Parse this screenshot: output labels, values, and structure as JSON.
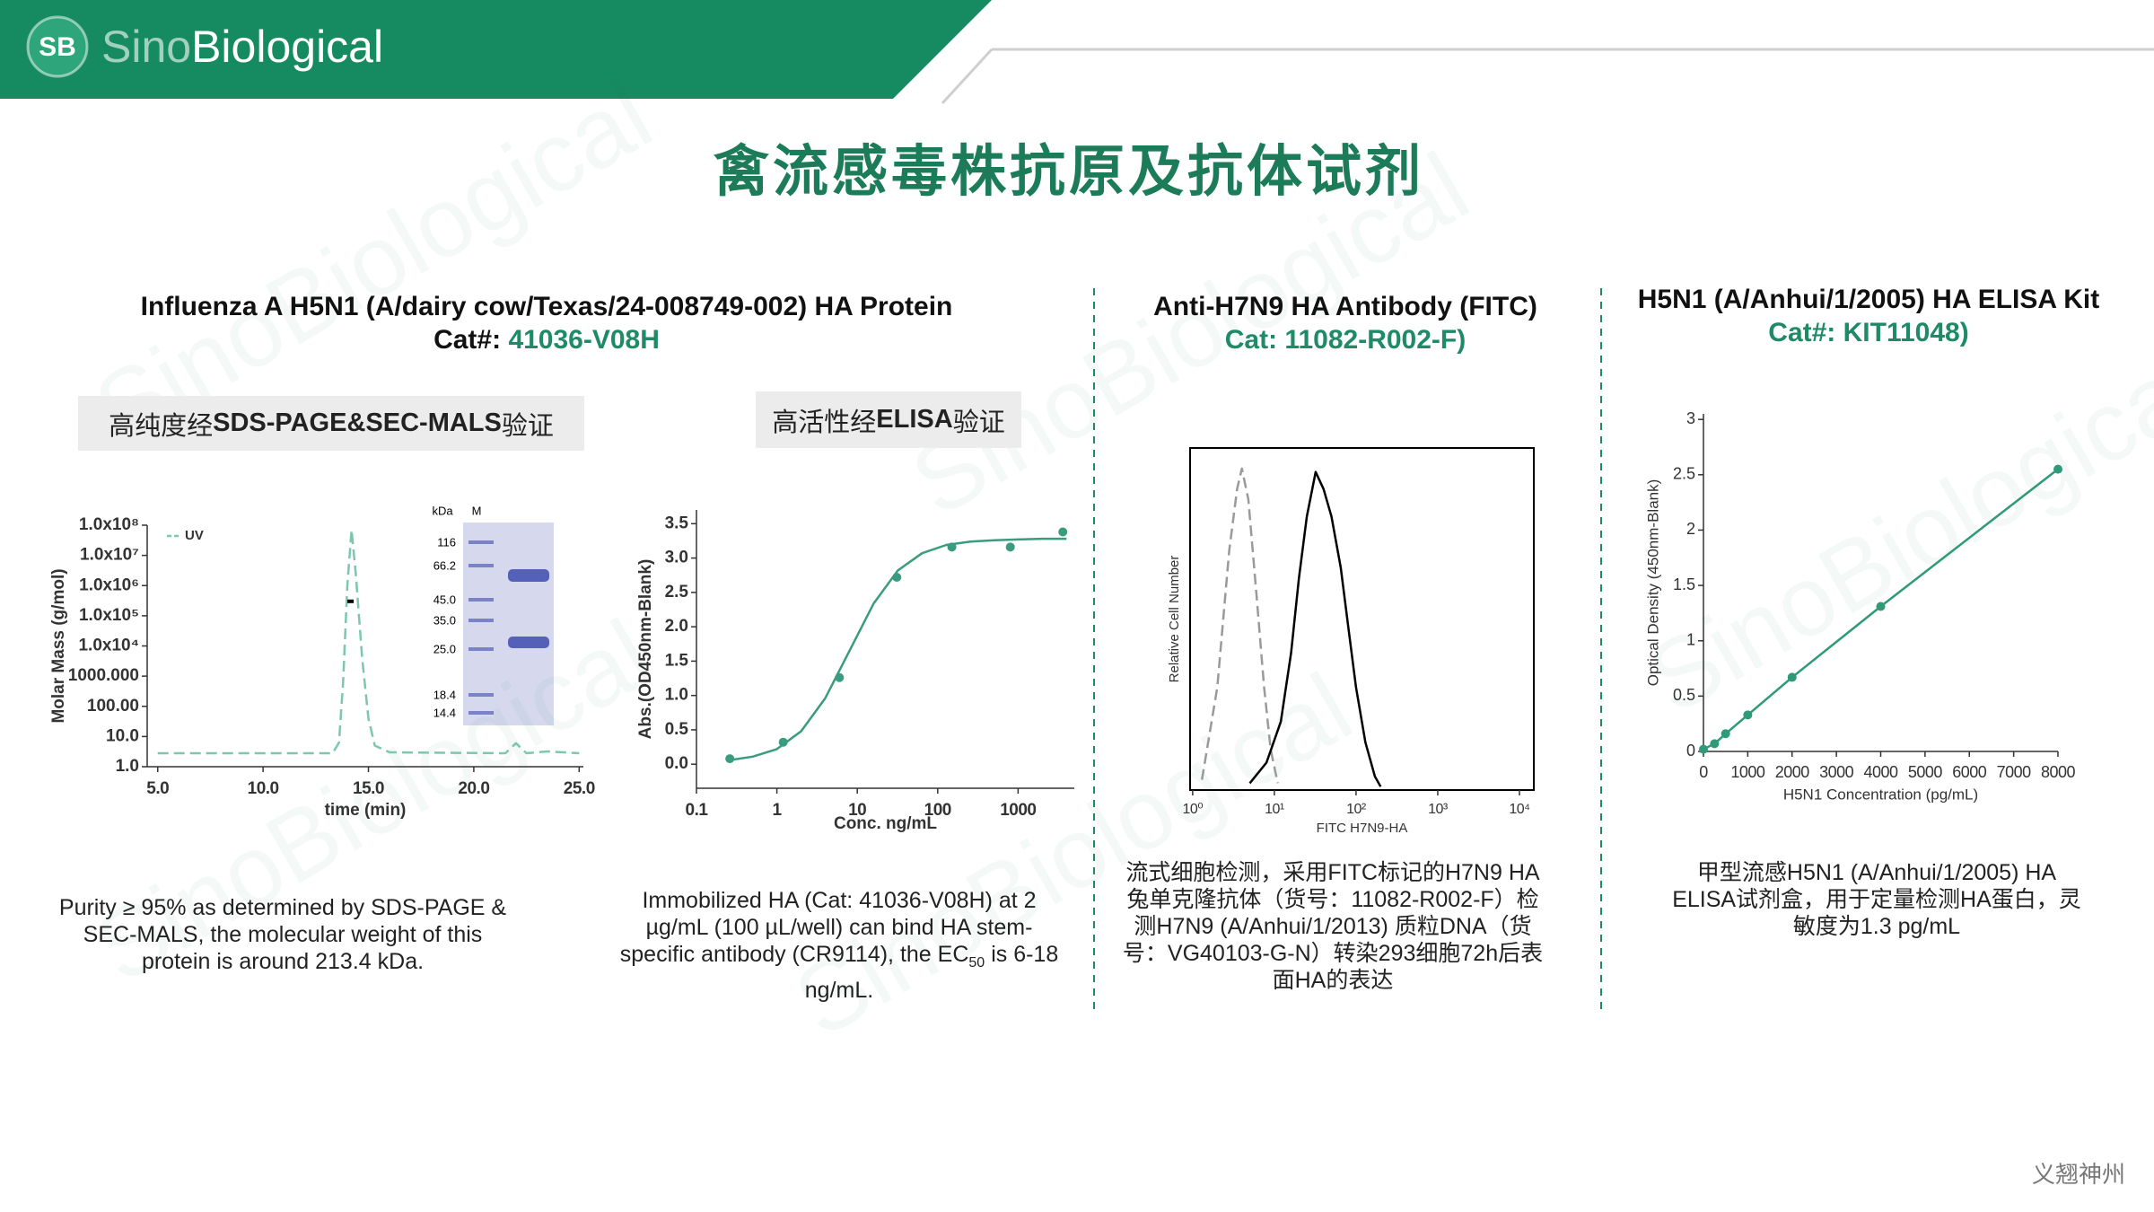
{
  "header": {
    "logo_mark": "SB",
    "logo_name_1": "Sino",
    "logo_name_2": "Biological"
  },
  "watermark": "SinoBiological",
  "title": "禽流感毒株抗原及抗体试剂",
  "panels": [
    {
      "title": "Influenza A H5N1 (A/dairy cow/Texas/24-008749-002) HA Protein",
      "cat_label": "Cat#:",
      "cat_number": "41036-V08H",
      "badge": {
        "pre": "高纯度经",
        "bold": "SDS-PAGE&SEC-MALS",
        "post": "验证"
      },
      "caption": "Purity ≥ 95% as determined by SDS-PAGE & SEC-MALS, the molecular weight of this protein is around 213.4 kDa."
    },
    {
      "badge": {
        "pre": "高活性经",
        "bold": "ELISA",
        "post": "验证"
      },
      "caption_parts": [
        "Immobilized HA (Cat: 41036-V08H) at 2 µg/mL (100 µL/well) can bind HA stem-specific antibody (CR9114), the EC",
        "50",
        "is 6-18 ng/mL."
      ]
    },
    {
      "title": "Anti-H7N9 HA Antibody (FITC)",
      "cat": "Cat: 11082-R002-F)",
      "caption": "流式细胞检测，采用FITC标记的H7N9 HA 兔单克隆抗体（货号：11082-R002-F）检测H7N9 (A/Anhui/1/2013) 质粒DNA（货号：VG40103-G-N）转染293细胞72h后表面HA的表达"
    },
    {
      "title": "H5N1 (A/Anhui/1/2005) HA ELISA Kit",
      "cat": "Cat#: KIT11048)",
      "caption": "甲型流感H5N1 (A/Anhui/1/2005) HA ELISA试剂盒，用于定量检测HA蛋白，灵敏度为1.3 pg/mL"
    }
  ],
  "gel": {
    "unit": "kDa",
    "lane": "M",
    "markers": [
      "116",
      "66.2",
      "45.0",
      "35.0",
      "25.0",
      "18.4",
      "14.4"
    ]
  },
  "footer": "义翘神州",
  "chart_data": [
    {
      "type": "line",
      "xlabel": "time (min)",
      "ylabel": "Molar Mass (g/mol)",
      "y_scale": "log",
      "legend": "upper left",
      "xlim": [
        4.5,
        25.2
      ],
      "ylim": [
        1,
        100000000
      ],
      "xticks": [
        {
          "value": 5,
          "label": "5.0"
        },
        {
          "value": 10,
          "label": "10.0"
        },
        {
          "value": 15,
          "label": "15.0"
        },
        {
          "value": 20,
          "label": "20.0"
        },
        {
          "value": 25,
          "label": "25.0"
        }
      ],
      "yticks": [
        {
          "value": 1,
          "label": "1.0"
        },
        {
          "value": 10,
          "label": "10.0"
        },
        {
          "value": 100,
          "label": "100.00"
        },
        {
          "value": 1000,
          "label": "1000.000"
        },
        {
          "value": 10000,
          "label": "1.0x10⁴"
        },
        {
          "value": 100000,
          "label": "1.0x10⁵"
        },
        {
          "value": 1000000,
          "label": "1.0x10⁶"
        },
        {
          "value": 10000000,
          "label": "1.0x10⁷"
        },
        {
          "value": 100000000,
          "label": "1.0x10⁸"
        }
      ],
      "series": [
        {
          "name": "UV",
          "color": "#7cc7ae",
          "style": "line",
          "dash": true,
          "x": [
            5,
            13.3,
            13.6,
            13.8,
            14.0,
            14.2,
            14.4,
            14.7,
            15.0,
            15.3,
            16,
            21.5,
            22.0,
            22.5,
            23.5,
            25
          ],
          "values": [
            2.8,
            2.8,
            6.3,
            630,
            1000000,
            70000000,
            2500000,
            4000,
            40,
            5,
            3,
            2.8,
            6,
            2.8,
            3.2,
            2.8
          ]
        },
        {
          "color": "#000000",
          "style": "line",
          "width": 4,
          "x": [
            14.0,
            14.3
          ],
          "values": [
            300000,
            300000
          ]
        }
      ]
    },
    {
      "type": "scatter",
      "xlabel": "Conc. ng/mL",
      "ylabel": "Abs.(OD450nm-Blank)",
      "x_scale": "log",
      "xlim": [
        0.1,
        5000
      ],
      "ylim": [
        -0.35,
        3.7
      ],
      "xticks": [
        0.1,
        1,
        10,
        100,
        1000
      ],
      "yticks": [
        {
          "value": 0,
          "label": "0.0"
        },
        0.5,
        {
          "value": 1,
          "label": "1.0"
        },
        1.5,
        {
          "value": 2,
          "label": "2.0"
        },
        2.5,
        {
          "value": 3,
          "label": "3.0"
        },
        3.5
      ],
      "series": [
        {
          "color": "#3a9c7e",
          "style": "points",
          "x": [
            0.26,
            1.2,
            6,
            31,
            150,
            800,
            3600
          ],
          "values": [
            0.08,
            0.32,
            1.26,
            2.72,
            3.16,
            3.16,
            3.38
          ]
        },
        {
          "color": "#3a9c7e",
          "style": "curve",
          "x": [
            0.26,
            0.5,
            1,
            2,
            4,
            8,
            16,
            32,
            64,
            128,
            256,
            512,
            1000,
            2000,
            4000
          ],
          "values": [
            0.06,
            0.11,
            0.22,
            0.48,
            0.96,
            1.65,
            2.34,
            2.82,
            3.07,
            3.19,
            3.24,
            3.26,
            3.27,
            3.28,
            3.28
          ]
        }
      ]
    },
    {
      "type": "line",
      "xlabel": "FITC H7N9-HA",
      "ylabel": "Relative Cell Number",
      "x_scale": "log",
      "frame": true,
      "xlim": [
        0.93,
        15000
      ],
      "ylim": [
        0,
        100
      ],
      "xticks": [
        {
          "value": 1,
          "label": "10⁰"
        },
        {
          "value": 10,
          "label": "10¹"
        },
        {
          "value": 100,
          "label": "10²"
        },
        {
          "value": 1000,
          "label": "10³"
        },
        {
          "value": 10000,
          "label": "10⁴"
        }
      ],
      "series": [
        {
          "color": "#9a9a9a",
          "style": "line",
          "dash": true,
          "x": [
            1.3,
            2,
            2.8,
            3.5,
            4,
            4.8,
            6,
            7.5,
            9,
            11
          ],
          "values": [
            3,
            30,
            70,
            88,
            94,
            85,
            58,
            30,
            12,
            2
          ]
        },
        {
          "color": "#000000",
          "style": "line",
          "x": [
            5,
            8,
            12,
            16,
            20,
            25,
            32,
            40,
            50,
            65,
            80,
            100,
            130,
            170,
            200
          ],
          "values": [
            2,
            8,
            20,
            40,
            62,
            80,
            93,
            88,
            80,
            65,
            48,
            30,
            14,
            4,
            1
          ]
        }
      ]
    },
    {
      "type": "line",
      "xlabel": "H5N1 Concentration (pg/mL)",
      "ylabel": "Optical Density (450nm-Blank)",
      "xlim": [
        0,
        8000
      ],
      "ylim": [
        0,
        3.05
      ],
      "xticks": [
        0,
        1000,
        2000,
        3000,
        4000,
        5000,
        6000,
        7000,
        8000
      ],
      "yticks": [
        0,
        0.5,
        1,
        1.5,
        2,
        2.5,
        3
      ],
      "series": [
        {
          "color": "#2f9a78",
          "style": "points+line",
          "x": [
            0,
            250,
            500,
            1000,
            2000,
            4000,
            8000
          ],
          "values": [
            0.02,
            0.07,
            0.16,
            0.33,
            0.67,
            1.31,
            2.55
          ]
        }
      ]
    }
  ]
}
